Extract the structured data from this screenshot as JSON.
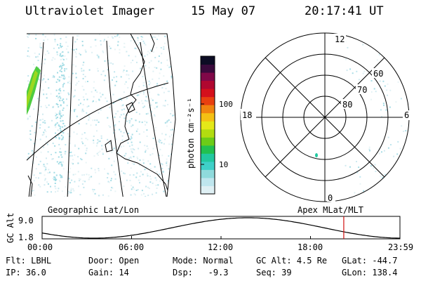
{
  "header": {
    "title": "Ultraviolet Imager",
    "date": "15 May 07",
    "time": "20:17:41 UT"
  },
  "geo_panel": {
    "label": "Geographic Lat/Lon"
  },
  "polar_panel": {
    "label": "Apex  MLat/MLT",
    "mlt_labels": {
      "top": "12",
      "left": "18",
      "right": "6",
      "bottom": "0"
    },
    "lat_labels": [
      "60",
      "70",
      "80"
    ]
  },
  "colorbar": {
    "unit_label": "photon cm⁻²s⁻¹",
    "ticks": [
      "100",
      "10"
    ],
    "colors": [
      "#dff0f4",
      "#bfe6ee",
      "#8fdadc",
      "#3fd0c8",
      "#22c8a0",
      "#22c050",
      "#6ccc18",
      "#b2dc10",
      "#e4e818",
      "#f4c014",
      "#f08410",
      "#e84010",
      "#d4101c",
      "#b00830",
      "#800848",
      "#3a0a3c",
      "#0c0c24"
    ]
  },
  "timeline": {
    "axis_label": "GC Alt",
    "y_ticks": [
      "9.0",
      "1.8"
    ],
    "x_ticks": [
      "00:00",
      "06:00",
      "12:00",
      "18:00",
      "23:59"
    ],
    "current_time_fraction": 0.843,
    "marker_color": "#d01010"
  },
  "info": {
    "row1": [
      {
        "label": "Flt:",
        "value": "LBHL"
      },
      {
        "label": "Door:",
        "value": "Open"
      },
      {
        "label": "Mode:",
        "value": "Normal"
      },
      {
        "label": "GC Alt:",
        "value": "4.5 Re"
      },
      {
        "label": "GLat:",
        "value": "-44.7"
      }
    ],
    "row2": [
      {
        "label": "IP:",
        "value": "36.0"
      },
      {
        "label": "Gain:",
        "value": "14"
      },
      {
        "label": "Dsp:",
        "value": "-9.3"
      },
      {
        "label": "Seq:",
        "value": "39"
      },
      {
        "label": "GLon:",
        "value": "138.4"
      }
    ]
  }
}
